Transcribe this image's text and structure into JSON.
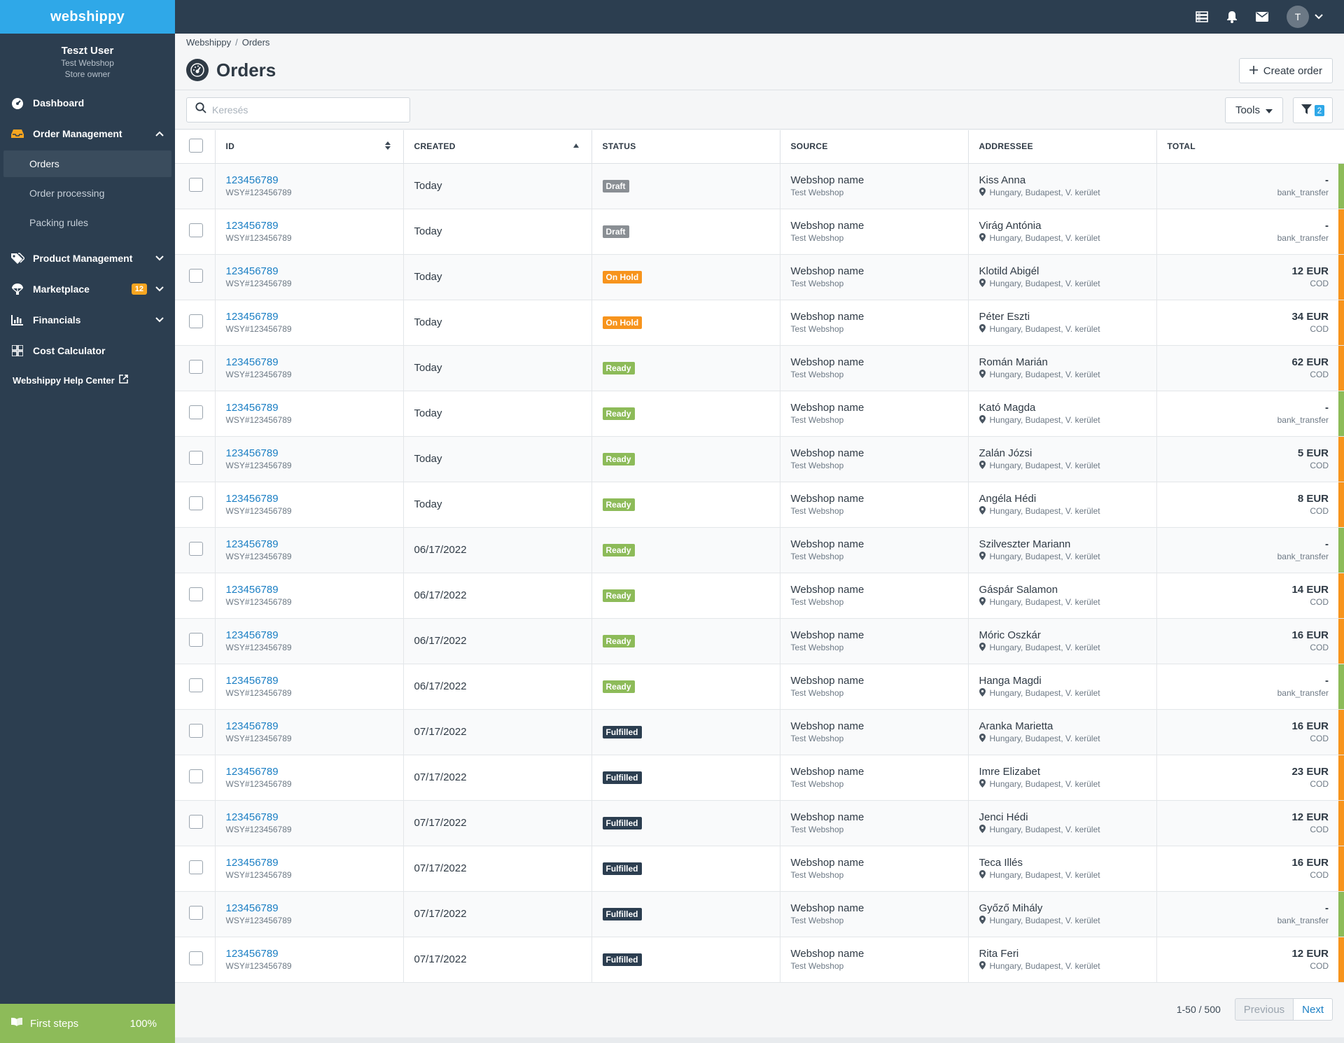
{
  "brand": "webshippy",
  "user": {
    "name": "Teszt User",
    "shop": "Test Webshop",
    "role": "Store owner"
  },
  "nav": {
    "dashboard": "Dashboard",
    "order_management": "Order Management",
    "orders": "Orders",
    "order_processing": "Order processing",
    "packing_rules": "Packing rules",
    "product_management": "Product Management",
    "marketplace": "Marketplace",
    "marketplace_badge": "12",
    "financials": "Financials",
    "cost_calculator": "Cost Calculator",
    "help_center": "Webshippy Help Center"
  },
  "first_steps": {
    "label": "First steps",
    "progress": "100%"
  },
  "topbar": {
    "avatar_initial": "T"
  },
  "breadcrumb": {
    "root": "Webshippy",
    "sep": "/",
    "current": "Orders"
  },
  "page": {
    "title": "Orders",
    "create_label": "Create order"
  },
  "toolbar": {
    "search_placeholder": "Keresés",
    "tools_label": "Tools",
    "filter_count": "2"
  },
  "table": {
    "headers": {
      "id": "ID",
      "created": "CREATED",
      "status": "STATUS",
      "source": "SOURCE",
      "addressee": "ADDRESSEE",
      "total": "TOTAL"
    },
    "rows": [
      {
        "id": "123456789",
        "ref": "WSY#123456789",
        "created": "Today",
        "status": "Draft",
        "status_type": "draft",
        "source": "Webshop name",
        "source_sub": "Test Webshop",
        "addressee": "Kiss Anna",
        "address": "Hungary, Budapest, V. kerület",
        "total": "-",
        "payment": "bank_transfer",
        "stripe": "#8dbb59"
      },
      {
        "id": "123456789",
        "ref": "WSY#123456789",
        "created": "Today",
        "status": "Draft",
        "status_type": "draft",
        "source": "Webshop name",
        "source_sub": "Test Webshop",
        "addressee": "Virág Antónia",
        "address": "Hungary, Budapest, V. kerület",
        "total": "-",
        "payment": "bank_transfer",
        "stripe": "#f7941d"
      },
      {
        "id": "123456789",
        "ref": "WSY#123456789",
        "created": "Today",
        "status": "On Hold",
        "status_type": "hold",
        "source": "Webshop name",
        "source_sub": "Test Webshop",
        "addressee": "Klotild Abigél",
        "address": "Hungary, Budapest, V. kerület",
        "total": "12 EUR",
        "payment": "COD",
        "stripe": "#f7941d"
      },
      {
        "id": "123456789",
        "ref": "WSY#123456789",
        "created": "Today",
        "status": "On Hold",
        "status_type": "hold",
        "source": "Webshop name",
        "source_sub": "Test Webshop",
        "addressee": "Péter Eszti",
        "address": "Hungary, Budapest, V. kerület",
        "total": "34 EUR",
        "payment": "COD",
        "stripe": "#f7941d"
      },
      {
        "id": "123456789",
        "ref": "WSY#123456789",
        "created": "Today",
        "status": "Ready",
        "status_type": "ready",
        "source": "Webshop name",
        "source_sub": "Test Webshop",
        "addressee": "Román Marián",
        "address": "Hungary, Budapest, V. kerület",
        "total": "62 EUR",
        "payment": "COD",
        "stripe": "#f7941d"
      },
      {
        "id": "123456789",
        "ref": "WSY#123456789",
        "created": "Today",
        "status": "Ready",
        "status_type": "ready",
        "source": "Webshop name",
        "source_sub": "Test Webshop",
        "addressee": "Kató Magda",
        "address": "Hungary, Budapest, V. kerület",
        "total": "-",
        "payment": "bank_transfer",
        "stripe": "#8dbb59"
      },
      {
        "id": "123456789",
        "ref": "WSY#123456789",
        "created": "Today",
        "status": "Ready",
        "status_type": "ready",
        "source": "Webshop name",
        "source_sub": "Test Webshop",
        "addressee": "Zalán Józsi",
        "address": "Hungary, Budapest, V. kerület",
        "total": "5 EUR",
        "payment": "COD",
        "stripe": "#f7941d"
      },
      {
        "id": "123456789",
        "ref": "WSY#123456789",
        "created": "Today",
        "status": "Ready",
        "status_type": "ready",
        "source": "Webshop name",
        "source_sub": "Test Webshop",
        "addressee": "Angéla Hédi",
        "address": "Hungary, Budapest, V. kerület",
        "total": "8 EUR",
        "payment": "COD",
        "stripe": "#f7941d"
      },
      {
        "id": "123456789",
        "ref": "WSY#123456789",
        "created": "06/17/2022",
        "status": "Ready",
        "status_type": "ready",
        "source": "Webshop name",
        "source_sub": "Test Webshop",
        "addressee": "Szilveszter Mariann",
        "address": "Hungary, Budapest, V. kerület",
        "total": "-",
        "payment": "bank_transfer",
        "stripe": "#8dbb59"
      },
      {
        "id": "123456789",
        "ref": "WSY#123456789",
        "created": "06/17/2022",
        "status": "Ready",
        "status_type": "ready",
        "source": "Webshop name",
        "source_sub": "Test Webshop",
        "addressee": "Gáspár Salamon",
        "address": "Hungary, Budapest, V. kerület",
        "total": "14 EUR",
        "payment": "COD",
        "stripe": "#f7941d"
      },
      {
        "id": "123456789",
        "ref": "WSY#123456789",
        "created": "06/17/2022",
        "status": "Ready",
        "status_type": "ready",
        "source": "Webshop name",
        "source_sub": "Test Webshop",
        "addressee": "Móric Oszkár",
        "address": "Hungary, Budapest, V. kerület",
        "total": "16 EUR",
        "payment": "COD",
        "stripe": "#f7941d"
      },
      {
        "id": "123456789",
        "ref": "WSY#123456789",
        "created": "06/17/2022",
        "status": "Ready",
        "status_type": "ready",
        "source": "Webshop name",
        "source_sub": "Test Webshop",
        "addressee": "Hanga Magdi",
        "address": "Hungary, Budapest, V. kerület",
        "total": "-",
        "payment": "bank_transfer",
        "stripe": "#8dbb59"
      },
      {
        "id": "123456789",
        "ref": "WSY#123456789",
        "created": "07/17/2022",
        "status": "Fulfilled",
        "status_type": "fulfilled",
        "source": "Webshop name",
        "source_sub": "Test Webshop",
        "addressee": "Aranka Marietta",
        "address": "Hungary, Budapest, V. kerület",
        "total": "16 EUR",
        "payment": "COD",
        "stripe": "#f7941d"
      },
      {
        "id": "123456789",
        "ref": "WSY#123456789",
        "created": "07/17/2022",
        "status": "Fulfilled",
        "status_type": "fulfilled",
        "source": "Webshop name",
        "source_sub": "Test Webshop",
        "addressee": "Imre Elizabet",
        "address": "Hungary, Budapest, V. kerület",
        "total": "23 EUR",
        "payment": "COD",
        "stripe": "#f7941d"
      },
      {
        "id": "123456789",
        "ref": "WSY#123456789",
        "created": "07/17/2022",
        "status": "Fulfilled",
        "status_type": "fulfilled",
        "source": "Webshop name",
        "source_sub": "Test Webshop",
        "addressee": "Jenci Hédi",
        "address": "Hungary, Budapest, V. kerület",
        "total": "12 EUR",
        "payment": "COD",
        "stripe": "#f7941d"
      },
      {
        "id": "123456789",
        "ref": "WSY#123456789",
        "created": "07/17/2022",
        "status": "Fulfilled",
        "status_type": "fulfilled",
        "source": "Webshop name",
        "source_sub": "Test Webshop",
        "addressee": "Teca Illés",
        "address": "Hungary, Budapest, V. kerület",
        "total": "16 EUR",
        "payment": "COD",
        "stripe": "#f7941d"
      },
      {
        "id": "123456789",
        "ref": "WSY#123456789",
        "created": "07/17/2022",
        "status": "Fulfilled",
        "status_type": "fulfilled",
        "source": "Webshop name",
        "source_sub": "Test Webshop",
        "addressee": "Győző Mihály",
        "address": "Hungary, Budapest, V. kerület",
        "total": "-",
        "payment": "bank_transfer",
        "stripe": "#8dbb59"
      },
      {
        "id": "123456789",
        "ref": "WSY#123456789",
        "created": "07/17/2022",
        "status": "Fulfilled",
        "status_type": "fulfilled",
        "source": "Webshop name",
        "source_sub": "Test Webshop",
        "addressee": "Rita Feri",
        "address": "Hungary, Budapest, V. kerület",
        "total": "12 EUR",
        "payment": "COD",
        "stripe": "#f7941d"
      }
    ]
  },
  "pagination": {
    "range": "1-50 / 500",
    "previous": "Previous",
    "next": "Next"
  },
  "colors": {
    "brand": "#2fa8e8",
    "sidebar": "#2c3e50",
    "link": "#1b7fc4",
    "ready": "#8dbb59",
    "hold": "#f7941d",
    "draft": "#8a8f94",
    "fulfilled": "#2c3e50"
  }
}
